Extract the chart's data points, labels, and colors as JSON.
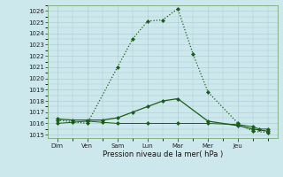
{
  "xlabel": "Pression niveau de la mer( hPa )",
  "yticks": [
    1015,
    1016,
    1017,
    1018,
    1019,
    1020,
    1021,
    1022,
    1023,
    1024,
    1025,
    1026
  ],
  "x_labels": [
    "Dim",
    "Ven",
    "Sam",
    "Lun",
    "Mar",
    "Mer",
    "Jeu"
  ],
  "bg_color": "#cce8ec",
  "grid_color": "#aac8d0",
  "line_color": "#1a5c1a",
  "s1_x": [
    0,
    1,
    2,
    2.5,
    3.0,
    3.5,
    4.0,
    4.5,
    5.0,
    6.0,
    6.5,
    7.0
  ],
  "s1_y": [
    1016.3,
    1016.0,
    1021.0,
    1023.5,
    1025.1,
    1025.2,
    1026.2,
    1022.2,
    1018.8,
    1016.0,
    1015.3,
    1015.2
  ],
  "s1_style": "dotted",
  "s2_x": [
    0,
    0.5,
    1.0,
    1.5,
    2.0,
    2.5,
    3.0,
    3.5,
    4.0,
    5.0,
    6.0,
    6.5,
    7.0
  ],
  "s2_y": [
    1016.4,
    1016.3,
    1016.3,
    1016.3,
    1016.5,
    1017.0,
    1017.5,
    1018.0,
    1018.2,
    1016.2,
    1015.8,
    1015.5,
    1015.3
  ],
  "s2_style": "solid",
  "s3_x": [
    0,
    0.5,
    1.0,
    1.5,
    2.0,
    3.0,
    4.0,
    5.0,
    6.0,
    6.5,
    6.7,
    7.0
  ],
  "s3_y": [
    1016.0,
    1016.1,
    1016.2,
    1016.1,
    1016.0,
    1016.0,
    1016.0,
    1016.0,
    1015.9,
    1015.7,
    1015.5,
    1015.5
  ],
  "s3_style": "solid",
  "xlim": [
    -0.3,
    7.3
  ],
  "ylim": [
    1014.7,
    1026.5
  ]
}
